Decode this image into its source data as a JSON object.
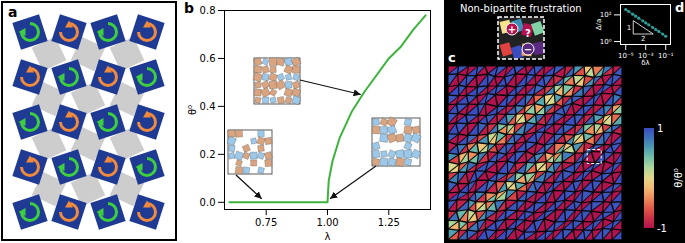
{
  "chart_data": [
    {
      "type": "line",
      "title": "b",
      "x_label": "λ",
      "y_label": "θ⁰",
      "x": [
        0.6,
        0.7,
        0.8,
        0.9,
        1.0,
        1.005,
        1.02,
        1.05,
        1.1,
        1.15,
        1.2,
        1.25,
        1.3,
        1.35,
        1.4
      ],
      "values": [
        0,
        0,
        0,
        0,
        0,
        0.09,
        0.17,
        0.27,
        0.38,
        0.46,
        0.53,
        0.6,
        0.65,
        0.72,
        0.78
      ],
      "color": "#3cb43c",
      "xlim": [
        0.58,
        1.42
      ],
      "ylim": [
        -0.03,
        0.8
      ],
      "xticks": [
        {
          "value": 0.75,
          "label": "0.75"
        },
        {
          "value": 1,
          "label": "1.00"
        },
        {
          "value": 1.25,
          "label": "1.25"
        }
      ],
      "yticks": [
        {
          "value": 0,
          "label": "0.0"
        },
        {
          "value": 0.2,
          "label": "0.2"
        },
        {
          "value": 0.4,
          "label": "0.4"
        },
        {
          "value": 0.6,
          "label": "0.6"
        },
        {
          "value": 0.8,
          "label": "0.8"
        }
      ]
    },
    {
      "type": "line",
      "title": "d",
      "x_label": "δλ",
      "y_label": "Δ/a",
      "log": true,
      "x": [
        1e-05,
        2e-05,
        5e-05,
        0.0001,
        0.0002,
        0.0005,
        0.001,
        0.002,
        0.005,
        0.01,
        0.02,
        0.05,
        0.1
      ],
      "values": [
        253,
        179,
        113,
        80,
        57,
        36,
        25,
        18,
        11.3,
        8,
        5.7,
        3.6,
        2.5
      ],
      "color": "#2e9e98",
      "marker": "circle",
      "line_style": "dashed",
      "xlim": [
        3e-06,
        0.3
      ],
      "ylim": [
        0.6,
        600
      ],
      "xticks": [
        {
          "value": 1e-05,
          "label": "10⁻⁵"
        },
        {
          "value": 0.001,
          "label": "10⁻³"
        },
        {
          "value": 0.1,
          "label": "10⁻¹"
        }
      ],
      "yticks": [
        {
          "value": 1,
          "label": "10⁰"
        },
        {
          "value": 100,
          "label": "10²"
        }
      ],
      "annotations": [
        "1",
        "2"
      ]
    }
  ],
  "panel_a": {
    "label": "a"
  },
  "panel_c": {
    "label": "c",
    "title": "Non-bipartite frustration",
    "symbols": [
      "+",
      "−",
      "?"
    ],
    "colorbar": {
      "label": "θ/θ⁰",
      "range": [
        -1,
        1
      ],
      "ticks": [
        -1,
        1
      ]
    }
  }
}
